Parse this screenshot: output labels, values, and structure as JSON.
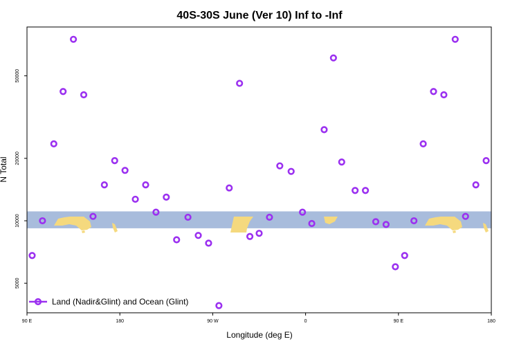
{
  "chart_data": {
    "type": "scatter",
    "title": "40S-30S June (Ver 10)   Inf to -Inf",
    "xlabel": "Longitude (deg E)",
    "ylabel": "N Total",
    "xlim": [
      90,
      540
    ],
    "ylim": [
      3600,
      86000
    ],
    "y_scale": "log",
    "x_ticks": [
      {
        "value": 90,
        "label": "90 E"
      },
      {
        "value": 180,
        "label": "180"
      },
      {
        "value": 270,
        "label": "90 W"
      },
      {
        "value": 360,
        "label": "0"
      },
      {
        "value": 450,
        "label": "90 E"
      },
      {
        "value": 540,
        "label": "180"
      }
    ],
    "y_ticks": [
      {
        "value": 5000,
        "label": "5000"
      },
      {
        "value": 10000,
        "label": "10000"
      },
      {
        "value": 20000,
        "label": "20000"
      },
      {
        "value": 50000,
        "label": "50000"
      }
    ],
    "map_band": {
      "y_range": [
        9200,
        11100
      ],
      "ocean_color": "#a8bcdc",
      "land_color": "#f5d97e"
    },
    "series": [
      {
        "name": "Land (Nadir&Glint) and Ocean (Glint)",
        "color": "#9b30f0",
        "marker": "circle-open",
        "x": [
          95,
          105,
          116,
          125,
          135,
          145,
          154,
          165,
          175,
          185,
          195,
          205,
          215,
          225,
          235,
          246,
          256,
          266,
          276,
          286,
          296,
          306,
          315,
          325,
          335,
          346,
          357,
          366,
          378,
          387,
          395,
          408,
          418,
          428,
          438,
          447,
          456,
          465,
          474,
          484,
          494,
          505,
          515,
          525,
          535
        ],
        "y": [
          6800,
          10000,
          23500,
          42000,
          75000,
          40500,
          10500,
          14900,
          19500,
          17500,
          12700,
          14900,
          11000,
          13000,
          8100,
          10400,
          8500,
          7800,
          3900,
          14400,
          46000,
          8400,
          8700,
          10400,
          18400,
          17300,
          11000,
          9700,
          27500,
          61000,
          19200,
          14000,
          14000,
          9900,
          9600,
          6000,
          6800,
          10000,
          23500,
          42000,
          40500,
          75000,
          10500,
          14900,
          19500
        ]
      }
    ],
    "legend": {
      "position": "bottom-left",
      "entries": [
        "Land (Nadir&Glint) and Ocean (Glint)"
      ]
    }
  }
}
